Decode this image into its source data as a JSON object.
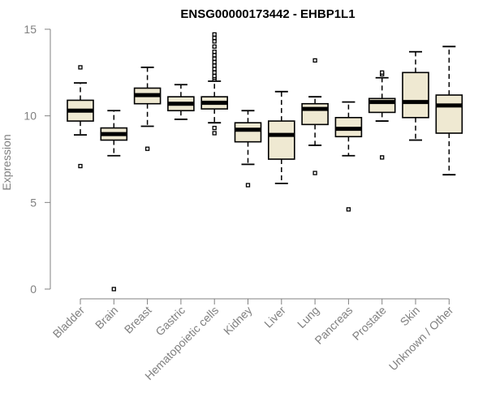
{
  "chart_data": {
    "type": "boxplot",
    "title": "ENSG00000173442 - EHBP1L1",
    "xlabel": "",
    "ylabel": "Expression",
    "ylim": [
      0,
      15
    ],
    "yticks": [
      0,
      5,
      10,
      15
    ],
    "grid": false,
    "box_color": "#efe9d2",
    "categories": [
      "Bladder",
      "Brain",
      "Breast",
      "Gastric",
      "Hematopoietic cells",
      "Kidney",
      "Liver",
      "Lung",
      "Pancreas",
      "Prostate",
      "Skin",
      "Unknown / Other"
    ],
    "series": [
      {
        "category": "Bladder",
        "whisker_low": 8.9,
        "q1": 9.7,
        "median": 10.3,
        "q3": 10.9,
        "whisker_high": 11.9,
        "outliers": [
          12.8,
          7.1
        ]
      },
      {
        "category": "Brain",
        "whisker_low": 7.7,
        "q1": 8.6,
        "median": 8.95,
        "q3": 9.3,
        "whisker_high": 10.3,
        "outliers": [
          0
        ]
      },
      {
        "category": "Breast",
        "whisker_low": 9.4,
        "q1": 10.7,
        "median": 11.2,
        "q3": 11.6,
        "whisker_high": 12.8,
        "outliers": [
          8.1
        ]
      },
      {
        "category": "Gastric",
        "whisker_low": 9.8,
        "q1": 10.3,
        "median": 10.7,
        "q3": 11.1,
        "whisker_high": 11.8,
        "outliers": []
      },
      {
        "category": "Hematopoietic cells",
        "whisker_low": 9.6,
        "q1": 10.4,
        "median": 10.75,
        "q3": 11.1,
        "whisker_high": 12.0,
        "outliers": [
          9.0,
          9.3,
          12.1,
          12.2,
          12.3,
          12.5,
          12.7,
          12.9,
          13.1,
          13.3,
          13.5,
          13.7,
          14.0,
          14.3,
          14.5,
          14.7
        ]
      },
      {
        "category": "Kidney",
        "whisker_low": 7.2,
        "q1": 8.5,
        "median": 9.2,
        "q3": 9.6,
        "whisker_high": 10.3,
        "outliers": [
          6.0
        ]
      },
      {
        "category": "Liver",
        "whisker_low": 6.1,
        "q1": 7.5,
        "median": 8.9,
        "q3": 9.7,
        "whisker_high": 11.4,
        "outliers": []
      },
      {
        "category": "Lung",
        "whisker_low": 8.3,
        "q1": 9.5,
        "median": 10.4,
        "q3": 10.7,
        "whisker_high": 11.1,
        "outliers": [
          13.2,
          6.7
        ]
      },
      {
        "category": "Pancreas",
        "whisker_low": 7.7,
        "q1": 8.8,
        "median": 9.25,
        "q3": 9.9,
        "whisker_high": 10.8,
        "outliers": [
          4.6
        ]
      },
      {
        "category": "Prostate",
        "whisker_low": 9.7,
        "q1": 10.2,
        "median": 10.8,
        "q3": 11.0,
        "whisker_high": 12.2,
        "outliers": [
          12.4,
          12.5,
          7.6
        ]
      },
      {
        "category": "Skin",
        "whisker_low": 8.6,
        "q1": 9.9,
        "median": 10.8,
        "q3": 12.5,
        "whisker_high": 13.7,
        "outliers": []
      },
      {
        "category": "Unknown / Other",
        "whisker_low": 6.6,
        "q1": 9.0,
        "median": 10.6,
        "q3": 11.2,
        "whisker_high": 14.0,
        "outliers": []
      }
    ]
  }
}
